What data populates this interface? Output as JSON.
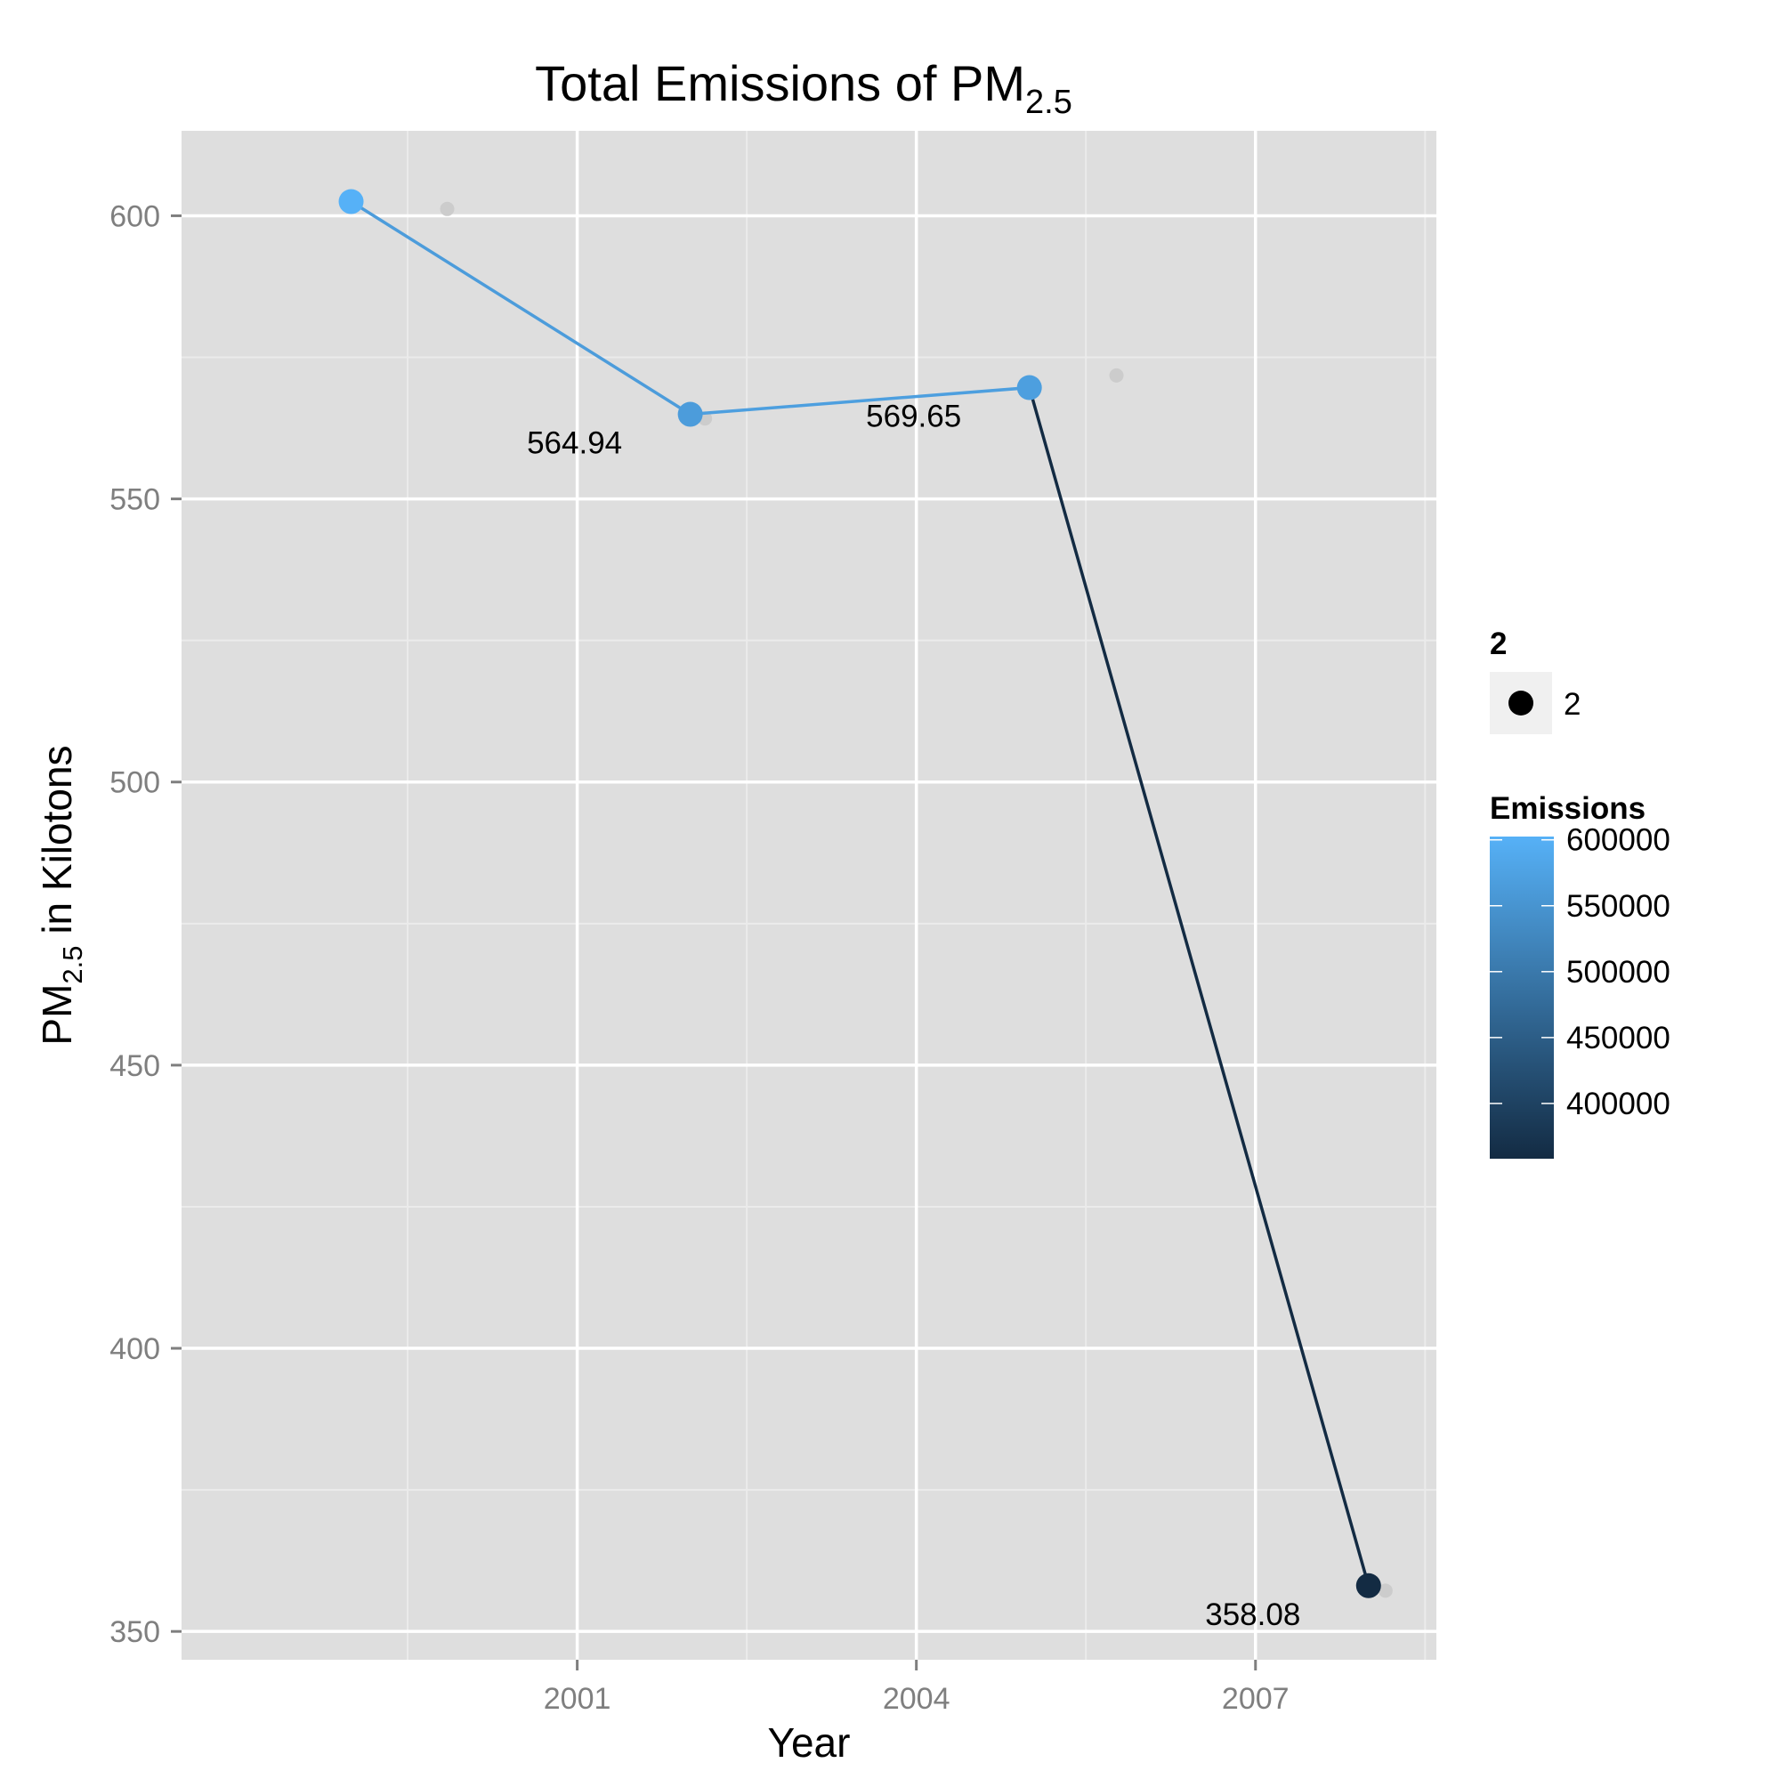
{
  "chart_data": {
    "type": "line",
    "title": {
      "main": "Total Emissions of PM",
      "subscript": "2.5"
    },
    "xlabel": "Year",
    "ylabel": {
      "prefix": "PM",
      "subscript": "2.5",
      "suffix": " in Kilotons"
    },
    "xlim": [
      1997.5,
      2008.6
    ],
    "ylim": [
      345,
      615
    ],
    "x_ticks": [
      2001,
      2004,
      2007
    ],
    "x_tick_labels": [
      "2001",
      "2004",
      "2007"
    ],
    "y_ticks": [
      350,
      400,
      450,
      500,
      550,
      600
    ],
    "y_tick_labels": [
      "350",
      "400",
      "450",
      "500",
      "550",
      "600"
    ],
    "grid": true,
    "series": [
      {
        "x": [
          1999,
          2002,
          2005,
          2008
        ],
        "y": [
          602.5,
          564.94,
          569.65,
          358.08
        ],
        "color_values": [
          602500,
          564940,
          569650,
          358080
        ]
      }
    ],
    "data_labels": [
      "564.94",
      "569.65",
      "358.08"
    ],
    "data_label_points": [
      1,
      2,
      3
    ],
    "ghost_points": {
      "x": [
        1999.85,
        2002.13,
        2005.77,
        2008.15
      ],
      "y": [
        601.2,
        564.2,
        571.8,
        357.2
      ]
    },
    "legend_shape": {
      "title": "2",
      "label": "2"
    },
    "legend_color": {
      "title": "Emissions",
      "ticks": [
        600000,
        550000,
        500000,
        450000,
        400000
      ],
      "tick_labels": [
        "600000",
        "550000",
        "500000",
        "450000",
        "400000"
      ],
      "range": [
        358080,
        602500
      ],
      "low_color": "#132b43",
      "high_color": "#56b1f7"
    },
    "legend_position": "right",
    "colors": {
      "panel": "#dedede",
      "grid_major": "#ffffff",
      "grid_minor": "#ebebeb",
      "ghost_point": "#cccccc",
      "legend_key_bg": "#f0f0f0"
    }
  }
}
